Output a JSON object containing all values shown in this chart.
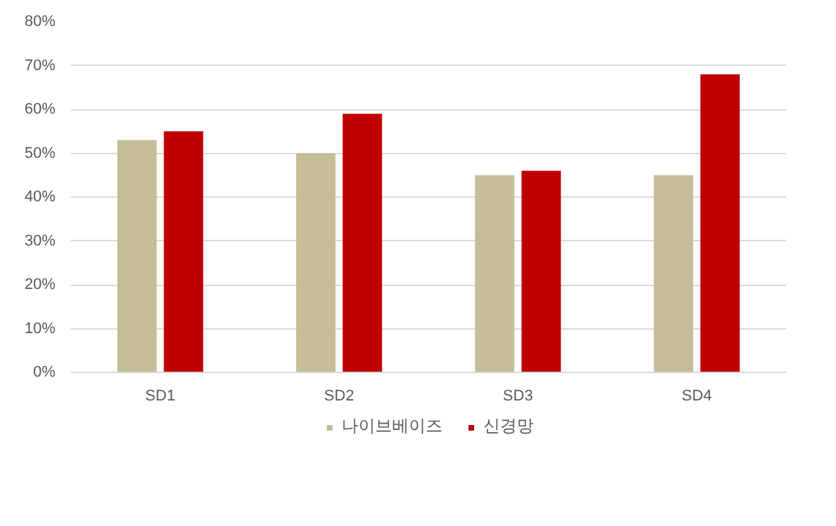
{
  "chart_data": {
    "type": "bar",
    "categories": [
      "SD1",
      "SD2",
      "SD3",
      "SD4"
    ],
    "series": [
      {
        "name": "나이브베이즈",
        "color": "#c4bd97",
        "values": [
          53,
          50,
          45,
          45
        ]
      },
      {
        "name": "신경망",
        "color": "#c00000",
        "values": [
          55,
          59,
          46,
          68
        ]
      }
    ],
    "ylim": [
      0,
      80
    ],
    "yticks": [
      {
        "value": 0,
        "label": "0%"
      },
      {
        "value": 10,
        "label": "10%"
      },
      {
        "value": 20,
        "label": "20%"
      },
      {
        "value": 30,
        "label": "30%"
      },
      {
        "value": 40,
        "label": "40%"
      },
      {
        "value": 50,
        "label": "50%"
      },
      {
        "value": 60,
        "label": "60%"
      },
      {
        "value": 70,
        "label": "70%"
      },
      {
        "value": 80,
        "label": "80%"
      }
    ],
    "grid": "y",
    "legend": "bottom"
  }
}
